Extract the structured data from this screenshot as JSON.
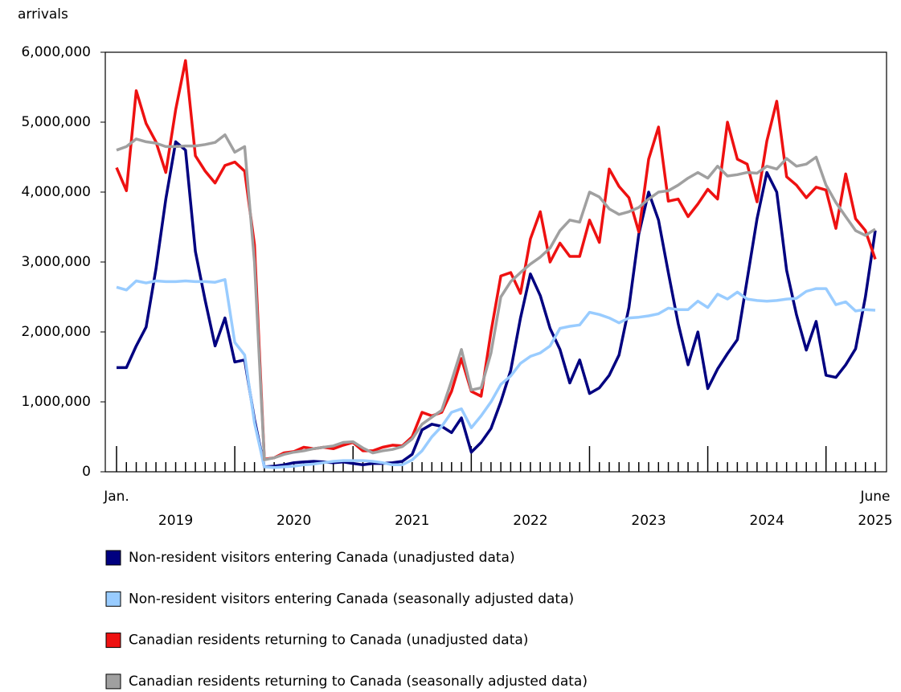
{
  "chart_data": {
    "type": "line",
    "y_label": "arrivals",
    "categories": [
      "Jan.",
      null,
      null,
      null,
      null,
      null,
      null,
      null,
      null,
      null,
      null,
      null,
      null,
      null,
      null,
      null,
      null,
      null,
      null,
      null,
      null,
      null,
      null,
      null,
      null,
      null,
      null,
      null,
      null,
      null,
      null,
      null,
      null,
      null,
      null,
      null,
      null,
      null,
      null,
      null,
      null,
      null,
      null,
      null,
      null,
      null,
      null,
      null,
      null,
      null,
      null,
      null,
      null,
      null,
      null,
      null,
      null,
      null,
      null,
      null,
      null,
      null,
      null,
      null,
      null,
      null,
      null,
      null,
      null,
      null,
      null,
      null,
      null,
      null,
      null,
      null,
      null,
      "June"
    ],
    "year_labels": [
      "2019",
      "2020",
      "2021",
      "2022",
      "2023",
      "2024",
      "2025"
    ],
    "ylim": [
      0,
      6000000
    ],
    "yticks": [
      0,
      {
        "value": 1000000,
        "label": "1,000,000"
      },
      {
        "value": 2000000,
        "label": "2,000,000"
      },
      {
        "value": 3000000,
        "label": "3,000,000"
      },
      {
        "value": 4000000,
        "label": "4,000,000"
      },
      {
        "value": 5000000,
        "label": "5,000,000"
      },
      {
        "value": 6000000,
        "label": "6,000,000"
      }
    ],
    "series": [
      {
        "name": "Non-resident visitors entering Canada (unadjusted data)",
        "color": "#000080",
        "values": [
          1490000,
          1490000,
          1800000,
          2070000,
          2900000,
          3900000,
          4720000,
          4600000,
          3150000,
          2450000,
          1800000,
          2200000,
          1570000,
          1600000,
          750000,
          70000,
          80000,
          100000,
          130000,
          140000,
          150000,
          140000,
          130000,
          140000,
          120000,
          100000,
          120000,
          120000,
          130000,
          150000,
          250000,
          600000,
          680000,
          650000,
          560000,
          770000,
          280000,
          420000,
          620000,
          1000000,
          1450000,
          2200000,
          2830000,
          2520000,
          2050000,
          1750000,
          1270000,
          1600000,
          1120000,
          1200000,
          1380000,
          1670000,
          2350000,
          3400000,
          4000000,
          3600000,
          2850000,
          2120000,
          1530000,
          2000000,
          1190000,
          1470000,
          1690000,
          1890000,
          2750000,
          3620000,
          4280000,
          4000000,
          2880000,
          2250000,
          1740000,
          2150000,
          1380000,
          1350000,
          1530000,
          1760000,
          2500000,
          3450000
        ]
      },
      {
        "name": "Non-resident visitors entering Canada (seasonally adjusted data)",
        "color": "#99ccff",
        "values": [
          2640000,
          2600000,
          2730000,
          2700000,
          2730000,
          2720000,
          2720000,
          2730000,
          2720000,
          2720000,
          2710000,
          2750000,
          1850000,
          1670000,
          700000,
          70000,
          60000,
          70000,
          80000,
          100000,
          110000,
          130000,
          150000,
          160000,
          160000,
          160000,
          150000,
          130000,
          100000,
          100000,
          170000,
          300000,
          500000,
          650000,
          850000,
          900000,
          630000,
          800000,
          1000000,
          1250000,
          1370000,
          1550000,
          1650000,
          1700000,
          1800000,
          2050000,
          2080000,
          2100000,
          2280000,
          2250000,
          2200000,
          2130000,
          2200000,
          2210000,
          2230000,
          2260000,
          2340000,
          2320000,
          2320000,
          2440000,
          2350000,
          2540000,
          2470000,
          2570000,
          2470000,
          2450000,
          2440000,
          2450000,
          2470000,
          2480000,
          2580000,
          2620000,
          2620000,
          2390000,
          2430000,
          2300000,
          2320000,
          2310000
        ]
      },
      {
        "name": "Canadian residents returning to Canada (unadjusted data)",
        "color": "#ee1111",
        "values": [
          4350000,
          4020000,
          5450000,
          4980000,
          4720000,
          4280000,
          5180000,
          5880000,
          4520000,
          4300000,
          4130000,
          4380000,
          4430000,
          4300000,
          3250000,
          180000,
          200000,
          270000,
          290000,
          350000,
          330000,
          350000,
          330000,
          380000,
          420000,
          300000,
          300000,
          350000,
          380000,
          370000,
          500000,
          850000,
          800000,
          850000,
          1150000,
          1620000,
          1150000,
          1080000,
          2000000,
          2800000,
          2850000,
          2550000,
          3330000,
          3720000,
          3000000,
          3270000,
          3080000,
          3080000,
          3600000,
          3280000,
          4330000,
          4080000,
          3920000,
          3430000,
          4470000,
          4930000,
          3870000,
          3900000,
          3650000,
          3830000,
          4040000,
          3900000,
          5000000,
          4470000,
          4400000,
          3860000,
          4730000,
          5300000,
          4220000,
          4100000,
          3920000,
          4070000,
          4030000,
          3480000,
          4260000,
          3620000,
          3450000,
          3040000
        ]
      },
      {
        "name": "Canadian residents returning to Canada (seasonally adjusted data)",
        "color": "#a0a0a0",
        "values": [
          4600000,
          4650000,
          4760000,
          4720000,
          4700000,
          4650000,
          4650000,
          4660000,
          4660000,
          4680000,
          4710000,
          4820000,
          4570000,
          4650000,
          3000000,
          170000,
          200000,
          250000,
          280000,
          300000,
          330000,
          350000,
          370000,
          420000,
          430000,
          340000,
          270000,
          300000,
          320000,
          360000,
          470000,
          680000,
          780000,
          880000,
          1300000,
          1750000,
          1170000,
          1200000,
          1700000,
          2500000,
          2720000,
          2850000,
          2970000,
          3070000,
          3200000,
          3450000,
          3600000,
          3570000,
          4000000,
          3930000,
          3760000,
          3680000,
          3720000,
          3780000,
          3900000,
          4000000,
          4020000,
          4100000,
          4200000,
          4280000,
          4200000,
          4370000,
          4230000,
          4250000,
          4280000,
          4270000,
          4370000,
          4330000,
          4480000,
          4370000,
          4400000,
          4500000,
          4100000,
          3850000,
          3650000,
          3450000,
          3380000,
          3470000
        ]
      }
    ]
  }
}
